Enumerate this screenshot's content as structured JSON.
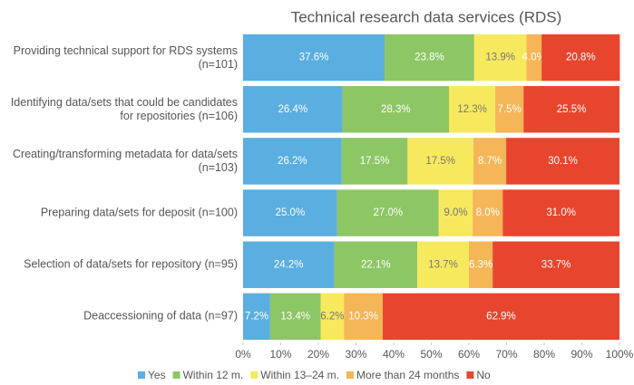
{
  "chart_data": {
    "type": "stacked_barh",
    "title": "Technical research data services (RDS)",
    "categories": [
      "Providing technical support for RDS systems (n=101)",
      "Identifying data/sets that could be candidates for repositories (n=106)",
      "Creating/transforming metadata for data/sets (n=103)",
      "Preparing data/sets for deposit (n=100)",
      "Selection of data/sets for repository (n=95)",
      "Deaccessioning of data (n=97)"
    ],
    "series": [
      {
        "name": "Yes",
        "color": "#5aaee0",
        "values": [
          37.6,
          26.4,
          26.2,
          25.0,
          24.2,
          7.2
        ],
        "value_labels": [
          "37.6%",
          "26.4%",
          "26.2%",
          "25.0%",
          "24.2%",
          "7.2%"
        ]
      },
      {
        "name": "Within 12 m.",
        "color": "#8dc665",
        "values": [
          23.8,
          28.3,
          17.5,
          27.0,
          22.1,
          13.4
        ],
        "value_labels": [
          "23.8%",
          "28.3%",
          "17.5%",
          "27.0%",
          "22.1%",
          "13.4%"
        ]
      },
      {
        "name": "Within 13–24 m.",
        "color": "#f7e95e",
        "values": [
          13.9,
          12.3,
          17.5,
          9.0,
          13.7,
          6.2
        ],
        "value_labels": [
          "13.9%",
          "12.3%",
          "17.5%",
          "9.0%",
          "13.7%",
          "6.2%"
        ]
      },
      {
        "name": "More than 24 months",
        "color": "#f4b656",
        "values": [
          4.0,
          7.5,
          8.7,
          8.0,
          6.3,
          10.3
        ],
        "value_labels": [
          "4.0%",
          "7.5%",
          "8.7%",
          "8.0%",
          "6.3%",
          "10.3%"
        ]
      },
      {
        "name": "No",
        "color": "#e8452f",
        "values": [
          20.8,
          25.5,
          30.1,
          31.0,
          33.7,
          62.9
        ],
        "value_labels": [
          "20.8%",
          "25.5%",
          "30.1%",
          "31.0%",
          "33.7%",
          "62.9%"
        ]
      }
    ],
    "xlim": [
      0,
      100
    ],
    "xticks": [
      {
        "value": 0,
        "label": "0%"
      },
      {
        "value": 10,
        "label": "10%"
      },
      {
        "value": 20,
        "label": "20%"
      },
      {
        "value": 30,
        "label": "30%"
      },
      {
        "value": 40,
        "label": "40%"
      },
      {
        "value": 50,
        "label": "50%"
      },
      {
        "value": 60,
        "label": "60%"
      },
      {
        "value": 70,
        "label": "70%"
      },
      {
        "value": 80,
        "label": "80%"
      },
      {
        "value": 90,
        "label": "90%"
      },
      {
        "value": 100,
        "label": "100%"
      }
    ],
    "legend": "bottom"
  }
}
